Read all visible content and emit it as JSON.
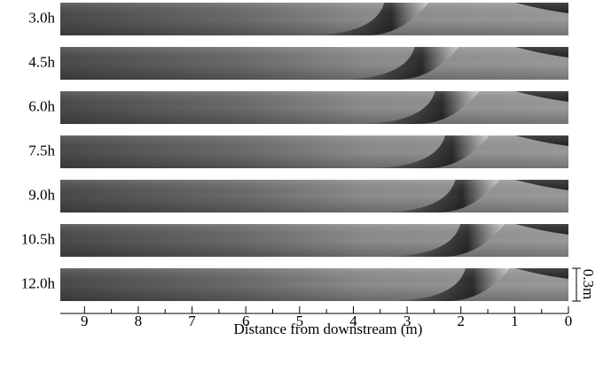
{
  "panels": [
    {
      "label": "3.0h"
    },
    {
      "label": "4.5h"
    },
    {
      "label": "6.0h"
    },
    {
      "label": "7.5h"
    },
    {
      "label": "9.0h"
    },
    {
      "label": "10.5h"
    },
    {
      "label": "12.0h"
    }
  ],
  "x_axis": {
    "label": "Distance from downstream (m)",
    "xlim": [
      9.45,
      0
    ],
    "xticks": [
      9,
      8,
      7,
      6,
      5,
      4,
      3,
      2,
      1,
      0
    ],
    "minor_xticks": [
      8.5,
      7.5,
      6.5,
      5.5,
      4.5,
      3.5,
      2.5,
      1.5,
      0.5
    ]
  },
  "scale_bar": {
    "label": "0.3m"
  }
}
